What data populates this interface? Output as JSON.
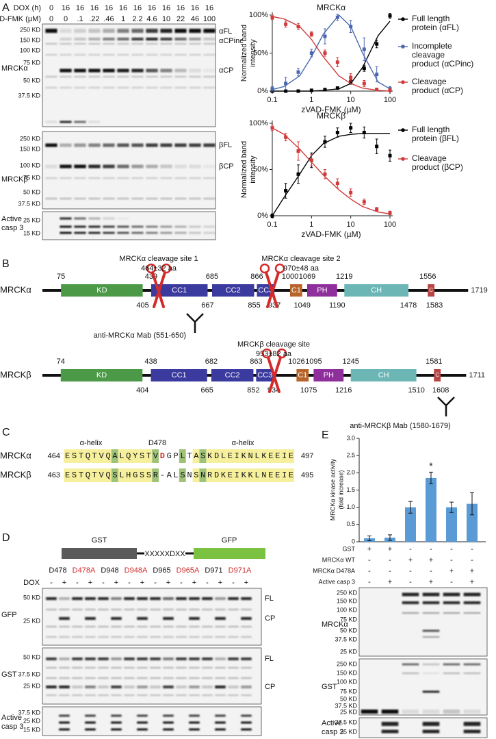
{
  "panel_labels": [
    "A",
    "B",
    "C",
    "D",
    "E"
  ],
  "panel_a": {
    "dox_label": "DOX (h)",
    "dox": [
      "0",
      "16",
      "16",
      "16",
      "16",
      "16",
      "16",
      "16",
      "16",
      "16",
      "16",
      "16"
    ],
    "zvad_label": "zVAD-FMK (µM)",
    "zvad": [
      "0",
      "0",
      ".1",
      ".22",
      ".46",
      "1",
      "2.2",
      "4.6",
      "10",
      "22",
      "46",
      "100"
    ],
    "blots": [
      {
        "label": [
          "MRCKα"
        ],
        "markers": [
          "250 KD",
          "150 KD",
          "100 KD",
          "75 KD",
          "50 KD",
          "37.5 KD"
        ],
        "bands": [
          "αFL",
          "αCPinc",
          "αCP"
        ]
      },
      {
        "label": [
          "MRCKβ"
        ],
        "markers": [
          "250 KD",
          "150 KD",
          "100 KD",
          "75 KD",
          "50 KD",
          "37.5 KD"
        ],
        "bands": [
          "βFL",
          "βCP"
        ]
      },
      {
        "label": [
          "Active",
          "casp 3"
        ],
        "markers": [
          "25 KD",
          "15 KD"
        ],
        "bands": []
      }
    ],
    "charts": [
      {
        "type": "line",
        "title": "MRCKα",
        "ylabel": [
          "Normalized band",
          "intensity"
        ],
        "xlabel": "zVAD-FMK (µM)",
        "log_x": true,
        "xlim": [
          0.1,
          100
        ],
        "xticks": [
          0.1,
          1,
          10,
          100
        ],
        "ylim": [
          0,
          100
        ],
        "yticks": [
          {
            "value": 0,
            "label": "0%"
          },
          {
            "value": 50,
            "label": "50%"
          },
          {
            "value": 100,
            "label": "100%"
          }
        ],
        "x": [
          0.1,
          0.22,
          0.46,
          1,
          2.2,
          4.6,
          10,
          22,
          46,
          100
        ],
        "fit_x": [
          0.1,
          0.2,
          0.5,
          1,
          2,
          5,
          10,
          20,
          50,
          100
        ],
        "series": [
          {
            "name": [
              "Full length",
              "protein (αFL)"
            ],
            "color": "#000000",
            "values": [
              0,
              0,
              0,
              1,
              2,
              4,
              12,
              30,
              62,
              99
            ],
            "errors": [
              1,
              1,
              1,
              1,
              1,
              1,
              3,
              4,
              5,
              3
            ],
            "fit": [
              0,
              0,
              0,
              0,
              1,
              3,
              10,
              31,
              73,
              92
            ]
          },
          {
            "name": [
              "Incomplete",
              "cleavage",
              "product (αCPinc)"
            ],
            "color": "#4a67b0",
            "values": [
              3,
              10,
              25,
              50,
              72,
              97,
              85,
              55,
              22,
              3
            ],
            "errors": [
              3,
              8,
              5,
              5,
              10,
              4,
              8,
              15,
              10,
              3
            ],
            "fit": [
              2,
              6,
              20,
              45,
              75,
              100,
              85,
              50,
              12,
              3
            ]
          },
          {
            "name": [
              "Cleavage",
              "product (αCP)"
            ],
            "color": "#d03a3a",
            "values": [
              97,
              88,
              85,
              75,
              50,
              38,
              18,
              10,
              2,
              1
            ],
            "errors": [
              3,
              4,
              4,
              3,
              4,
              6,
              5,
              4,
              2,
              2
            ],
            "fit": [
              98,
              95,
              85,
              68,
              45,
              20,
              10,
              4,
              1,
              0
            ]
          }
        ]
      },
      {
        "type": "line",
        "title": "MRCKβ",
        "ylabel": [
          "Normalized band",
          "intensity"
        ],
        "xlabel": "zVAD-FMK (µM)",
        "log_x": true,
        "xlim": [
          0.1,
          100
        ],
        "xticks": [
          0.1,
          1,
          10,
          100
        ],
        "ylim": [
          0,
          100
        ],
        "yticks": [
          {
            "value": 0,
            "label": "0%"
          },
          {
            "value": 50,
            "label": "50%"
          },
          {
            "value": 100,
            "label": "100%"
          }
        ],
        "x": [
          0.1,
          0.22,
          0.46,
          1,
          2.2,
          4.6,
          10,
          22,
          46,
          100
        ],
        "fit_x": [
          0.1,
          0.2,
          0.5,
          1,
          2,
          5,
          10,
          20,
          50,
          100
        ],
        "series": [
          {
            "name": [
              "Full length",
              "protein (βFL)"
            ],
            "color": "#000000",
            "values": [
              0,
              27,
              45,
              60,
              80,
              90,
              95,
              90,
              75,
              65
            ],
            "errors": [
              2,
              8,
              10,
              8,
              6,
              5,
              5,
              6,
              8,
              6
            ],
            "fit": [
              0,
              20,
              45,
              65,
              78,
              86,
              88,
              89,
              89,
              89
            ]
          },
          {
            "name": [
              "Cleavage",
              "product (βCP)"
            ],
            "color": "#d03a3a",
            "values": [
              95,
              85,
              70,
              60,
              45,
              35,
              25,
              15,
              7,
              3
            ],
            "errors": [
              3,
              4,
              10,
              6,
              5,
              5,
              4,
              3,
              2,
              2
            ],
            "fit": [
              95,
              88,
              72,
              58,
              44,
              28,
              18,
              10,
              4,
              2
            ]
          }
        ]
      }
    ]
  },
  "panel_b": {
    "proteins": [
      {
        "name": "MRCKα",
        "length": 1719,
        "domains": [
          {
            "name": "KD",
            "start": 75,
            "end": 405,
            "color": "#4c9a47"
          },
          {
            "name": "CC1",
            "start": 439,
            "end": 667,
            "color": "#3b3a9e"
          },
          {
            "name": "CC2",
            "start": 685,
            "end": 855,
            "color": "#3b3a9e"
          },
          {
            "name": "CC3",
            "start": 866,
            "end": 937,
            "color": "#3b3a9e"
          },
          {
            "name": "C1",
            "start": 1000,
            "end": 1049,
            "color": "#b8652c"
          },
          {
            "name": "PH",
            "start": 1069,
            "end": 1190,
            "color": "#8e2f9c"
          },
          {
            "name": "CH",
            "start": 1219,
            "end": 1478,
            "color": "#6cb6b6"
          },
          {
            "name": "C",
            "start": 1556,
            "end": 1583,
            "color": "#b84444"
          }
        ]
      },
      {
        "name": "MRCKβ",
        "length": 1711,
        "domains": [
          {
            "name": "KD",
            "start": 74,
            "end": 404,
            "color": "#4c9a47"
          },
          {
            "name": "CC1",
            "start": 438,
            "end": 665,
            "color": "#3b3a9e"
          },
          {
            "name": "CC2",
            "start": 682,
            "end": 852,
            "color": "#3b3a9e"
          },
          {
            "name": "CC3",
            "start": 863,
            "end": 934,
            "color": "#3b3a9e"
          },
          {
            "name": "C1",
            "start": 1026,
            "end": 1075,
            "color": "#b8652c"
          },
          {
            "name": "PH",
            "start": 1095,
            "end": 1216,
            "color": "#8e2f9c"
          },
          {
            "name": "CH",
            "start": 1245,
            "end": 1510,
            "color": "#6cb6b6"
          },
          {
            "name": "C",
            "start": 1581,
            "end": 1608,
            "color": "#b84444"
          }
        ]
      }
    ],
    "sites": [
      {
        "title": "MRCKα cleavage site 1",
        "range": "464±32 aa"
      },
      {
        "title": "MRCKα cleavage site 2",
        "range": "970±48 aa"
      },
      {
        "title": "MRCKβ cleavage site",
        "range": "953±82 aa"
      }
    ],
    "antibodies": [
      "anti-MRCKα Mab (551-650)",
      "anti-MRCKβ Mab (1580-1679)"
    ]
  },
  "panel_c": {
    "labels": [
      "α-helix",
      "D478",
      "α-helix"
    ],
    "rows": [
      {
        "name": "MRCKα",
        "start": 464,
        "sequence": "ESTQTVQALQYSTVDGPLTASKDLEIKNLKEEIE",
        "end": 497
      },
      {
        "name": "MRCKβ",
        "start": 463,
        "sequence": "ESTQTVQSLHGSSR-ALSNSNRDKEIKKLNEEIE",
        "end": 495
      }
    ]
  },
  "panel_d": {
    "construct": {
      "left": "GST",
      "linker": "XXXXXDXX",
      "right": "GFP"
    },
    "headers": [
      {
        "text": "D478",
        "color": "#111111"
      },
      {
        "text": "D478A",
        "color": "#d02a2a"
      },
      {
        "text": "D948",
        "color": "#111111"
      },
      {
        "text": "D948A",
        "color": "#d02a2a"
      },
      {
        "text": "D965",
        "color": "#111111"
      },
      {
        "text": "D965A",
        "color": "#d02a2a"
      },
      {
        "text": "D971",
        "color": "#111111"
      },
      {
        "text": "D971A",
        "color": "#d02a2a"
      }
    ],
    "dox_label": "DOX",
    "dox": [
      "-",
      "+",
      "-",
      "+",
      "-",
      "+",
      "-",
      "+",
      "-",
      "+",
      "-",
      "+",
      "-",
      "+",
      "-",
      "+"
    ],
    "blots": [
      {
        "label": [
          "GFP"
        ],
        "markers": [
          "50 KD",
          "25 KD"
        ],
        "bands": [
          "FL",
          "CP"
        ]
      },
      {
        "label": [
          "GST"
        ],
        "markers": [
          "50 KD",
          "37.5 KD",
          "25 KD"
        ],
        "bands": [
          "FL",
          "CP"
        ]
      },
      {
        "label": [
          "Active",
          "casp 3"
        ],
        "markers": [
          "37.5 KD",
          "25 KD",
          "15 KD"
        ],
        "bands": []
      }
    ]
  },
  "panel_e": {
    "chart": {
      "type": "bar",
      "ylabel": [
        "MRCKα kinase activity",
        "(fold increase)"
      ],
      "ylim": [
        0,
        3
      ],
      "yticks": [
        0,
        0.5,
        {
          "value": 1,
          "label": "1.0"
        },
        1.5,
        {
          "value": 2,
          "label": "2.0"
        },
        2.5,
        {
          "value": 3,
          "label": "3.0"
        }
      ],
      "values": [
        0.1,
        0.12,
        1.0,
        1.85,
        1.0,
        1.1
      ],
      "errors": [
        0.07,
        0.08,
        0.17,
        0.17,
        0.15,
        0.32
      ],
      "color": "#5b9bd5",
      "annotation": "*"
    },
    "conditions": [
      {
        "label": "GST",
        "signs": [
          "+",
          "+",
          "-",
          "-",
          "-",
          "-"
        ]
      },
      {
        "label": "MRCKα WT",
        "signs": [
          "-",
          "-",
          "+",
          "+",
          "-",
          "-"
        ]
      },
      {
        "label": "MRCKα D478A",
        "signs": [
          "-",
          "-",
          "-",
          "-",
          "+",
          "+"
        ]
      },
      {
        "label": "Active casp 3",
        "signs": [
          "-",
          "+",
          "-",
          "+",
          "-",
          "+"
        ]
      }
    ],
    "blots": [
      {
        "label": [
          "MRCKα"
        ],
        "markers": [
          "250 KD",
          "150 KD",
          "100 KD",
          "75 KD",
          "50 KD",
          "37.5 KD",
          "25 KD"
        ],
        "bands": []
      },
      {
        "label": [
          "GST"
        ],
        "markers": [
          "250 KD",
          "150 KD",
          "100 KD",
          "75 KD",
          "50 KD",
          "37.5 KD",
          "25 KD"
        ],
        "bands": []
      },
      {
        "label": [
          "Active",
          "casp 3"
        ],
        "markers": [
          "37.5 KD",
          "25 KD"
        ],
        "bands": []
      }
    ]
  }
}
